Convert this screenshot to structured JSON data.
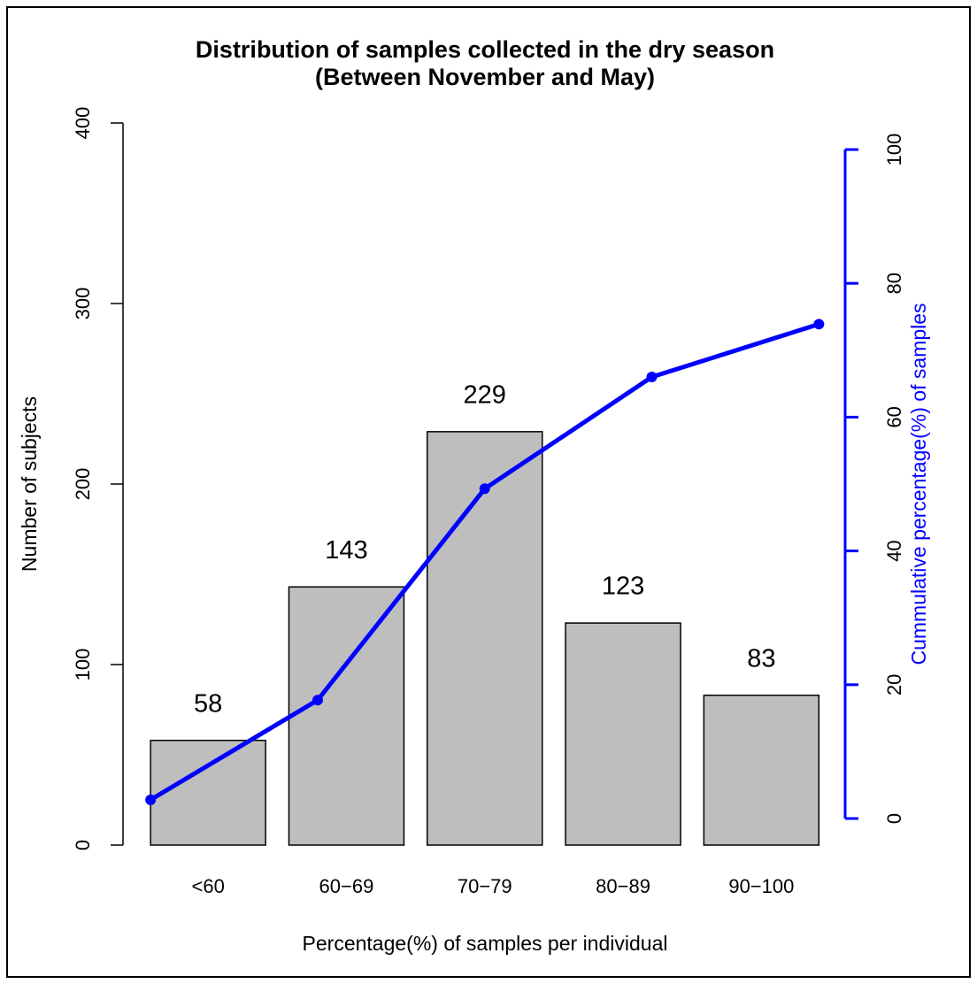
{
  "chart_data": {
    "type": "bar",
    "title": "Distribution of samples collected in the dry season",
    "subtitle": "(Between November and May)",
    "x_label": "Percentage(%) of samples per individual",
    "y_label": "Number of subjects",
    "y2_label": "Cummulative percentage(%) of samples",
    "categories": [
      "<60",
      "60−69",
      "70−79",
      "80−89",
      "90−100"
    ],
    "series": [
      {
        "type": "bar",
        "color": "#bebebe",
        "values": [
          58,
          143,
          229,
          123,
          83
        ]
      },
      {
        "type": "line",
        "axis": "y2",
        "color": "#0000ff",
        "values": [
          2.8,
          17.7,
          49.3,
          66.0,
          73.9
        ]
      }
    ],
    "ylim": [
      0,
      400
    ],
    "yticks": [
      0,
      100,
      200,
      300,
      400
    ],
    "y2lim": [
      0,
      100
    ],
    "y2ticks": [
      0,
      20,
      40,
      60,
      80,
      100
    ],
    "y2_color": "#0000ff"
  }
}
